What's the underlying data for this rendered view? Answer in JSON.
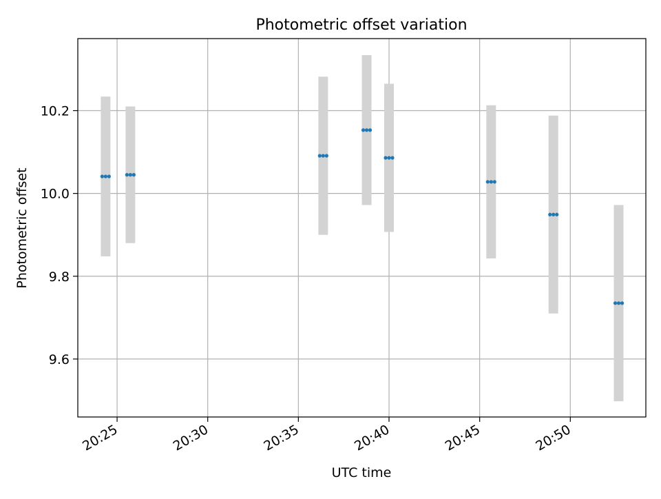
{
  "chart_data": {
    "type": "scatter",
    "title": "Photometric offset variation",
    "xlabel": "UTC time",
    "ylabel": "Photometric offset",
    "xlim": [
      "20:22:50",
      "20:54:10"
    ],
    "ylim": [
      9.46,
      10.374
    ],
    "x_ticks": [
      "20:25",
      "20:30",
      "20:35",
      "20:40",
      "20:45",
      "20:50"
    ],
    "y_ticks": [
      "9.6",
      "9.8",
      "10.0",
      "10.2"
    ],
    "grid": true,
    "series": [
      {
        "points": [
          {
            "time": "20:24:22",
            "y": 10.041,
            "err": 0.193
          },
          {
            "time": "20:25:44",
            "y": 10.045,
            "err": 0.165
          },
          {
            "time": "20:36:22",
            "y": 10.091,
            "err": 0.191
          },
          {
            "time": "20:38:46",
            "y": 10.153,
            "err": 0.181
          },
          {
            "time": "20:40:00",
            "y": 10.086,
            "err": 0.179
          },
          {
            "time": "20:45:38",
            "y": 10.028,
            "err": 0.185
          },
          {
            "time": "20:49:04",
            "y": 9.949,
            "err": 0.239
          },
          {
            "time": "20:52:40",
            "y": 9.735,
            "err": 0.237
          }
        ]
      }
    ],
    "colors": {
      "marker": "#1f77b4",
      "errorbar": "#d3d3d3",
      "grid": "#b0b0b0",
      "axes": "#000000"
    }
  }
}
